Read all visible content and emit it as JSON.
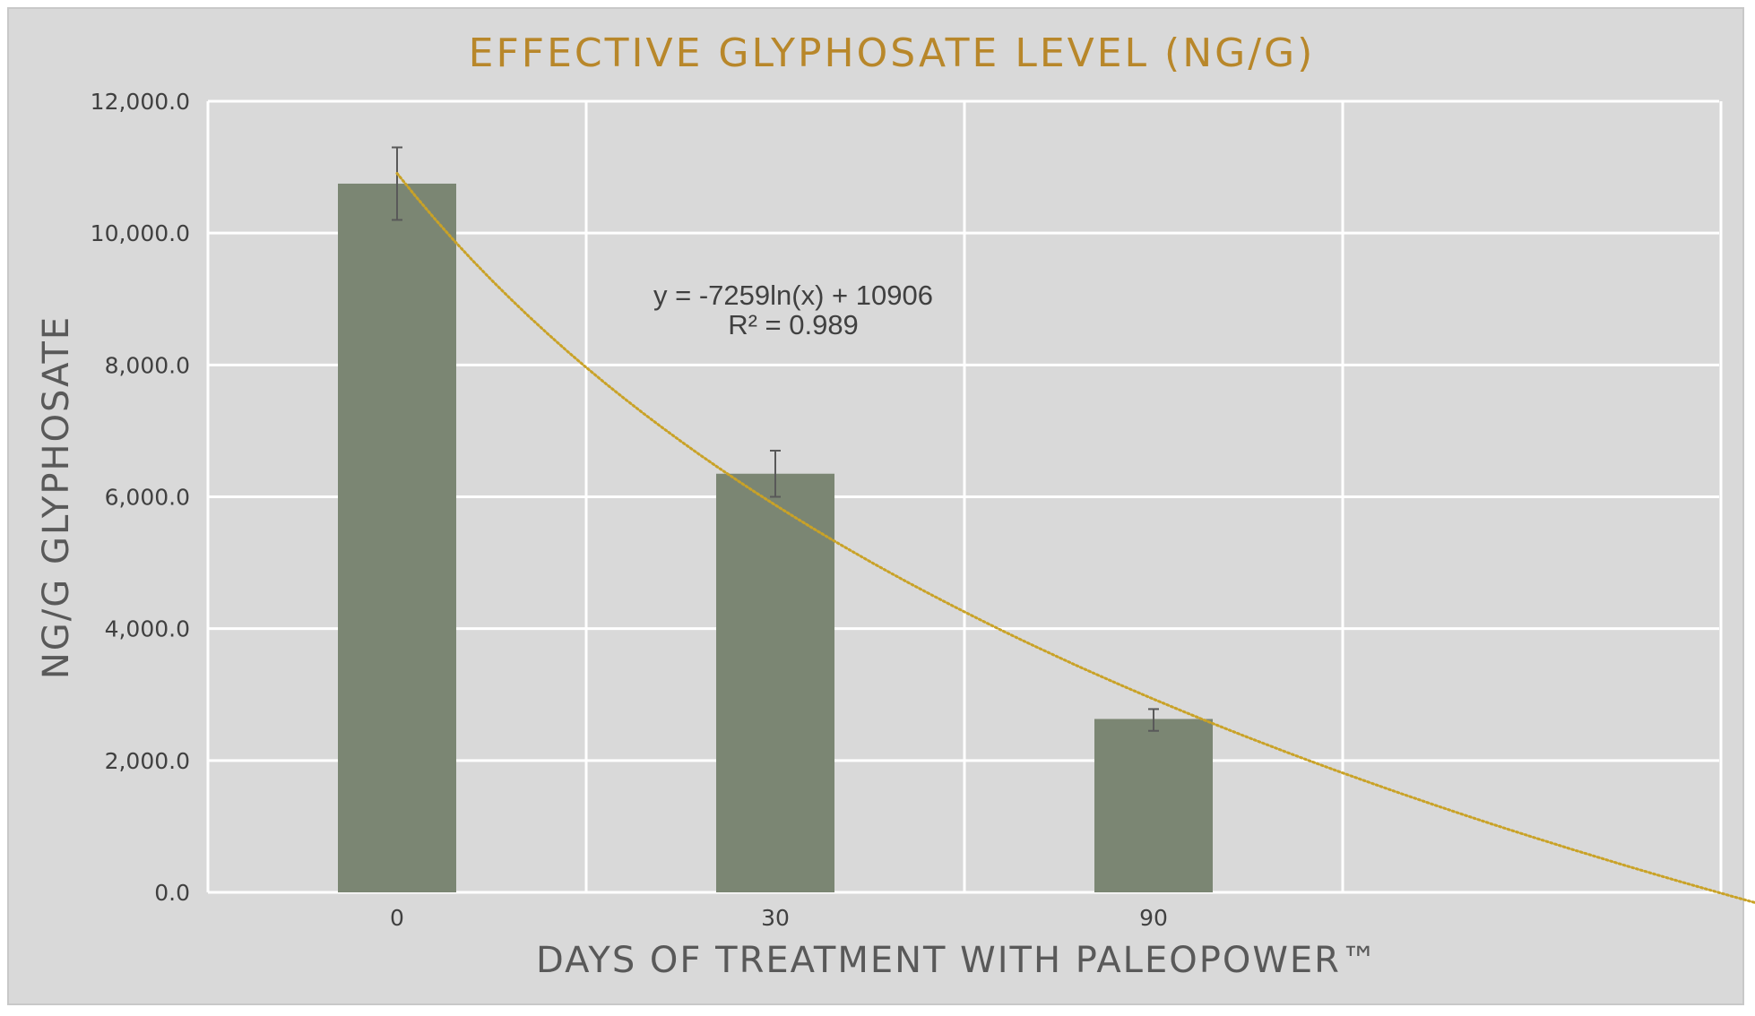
{
  "chart_data": {
    "type": "bar",
    "title": "EFFECTIVE GLYPHOSATE LEVEL (NG/G)",
    "xlabel": "DAYS OF TREATMENT WITH PALEOPOWER™",
    "ylabel": "NG/G GLYPHOSATE",
    "categories": [
      "0",
      "30",
      "90"
    ],
    "values": [
      10750,
      6350,
      2630
    ],
    "error_bars": [
      {
        "low": 10200,
        "high": 11300
      },
      {
        "low": 6000,
        "high": 6700
      },
      {
        "low": 2450,
        "high": 2780
      }
    ],
    "ylim": [
      0,
      12000
    ],
    "yticks": [
      0,
      2000,
      4000,
      6000,
      8000,
      10000,
      12000
    ],
    "ytick_labels": [
      "0.0",
      "2,000.0",
      "4,000.0",
      "6,000.0",
      "8,000.0",
      "10,000.0",
      "12,000.0"
    ],
    "grid": true,
    "trendline": {
      "type": "logarithmic",
      "a": -7259,
      "b": 10906,
      "x_start": 1,
      "x_end": 5.5,
      "equation": "y = -7259ln(x) + 10906",
      "r_squared": "R² = 0.989"
    },
    "colors": {
      "background": "#d9d9d9",
      "bar": "#7b8673",
      "title": "#b8872a",
      "trendline": "#c9a227",
      "grid": "#ffffff",
      "error_bar": "#595959"
    }
  }
}
